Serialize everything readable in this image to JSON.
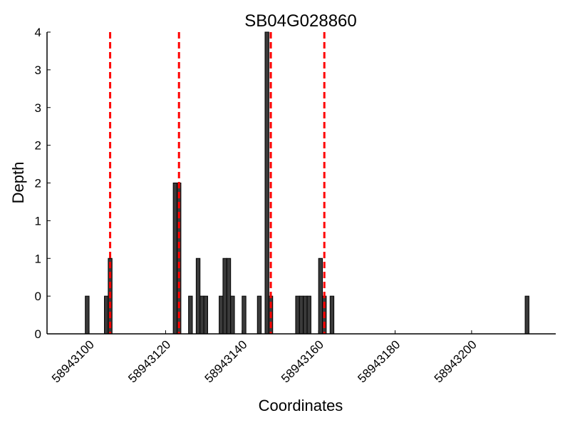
{
  "chart_data": {
    "type": "bar",
    "title": "SB04G028860",
    "xlabel": "Coordinates",
    "ylabel": "Depth",
    "xlim": [
      58943089,
      58943222
    ],
    "ylim": [
      0,
      4
    ],
    "x_ticks": [
      58943100,
      58943120,
      58943140,
      58943160,
      58943180,
      58943200
    ],
    "y_tick_labels": [
      "0",
      "0",
      "1",
      "1",
      "2",
      "2",
      "3",
      "3",
      "4"
    ],
    "bar_width": 1,
    "bar_color": "#3a3a3a",
    "bars": [
      {
        "x": 58943099,
        "value": 0.5
      },
      {
        "x": 58943104,
        "value": 0.5
      },
      {
        "x": 58943105,
        "value": 1.0
      },
      {
        "x": 58943122,
        "value": 2.0
      },
      {
        "x": 58943123,
        "value": 2.0
      },
      {
        "x": 58943126,
        "value": 0.5
      },
      {
        "x": 58943128,
        "value": 1.0
      },
      {
        "x": 58943129,
        "value": 0.5
      },
      {
        "x": 58943130,
        "value": 0.5
      },
      {
        "x": 58943134,
        "value": 0.5
      },
      {
        "x": 58943135,
        "value": 1.0
      },
      {
        "x": 58943136,
        "value": 1.0
      },
      {
        "x": 58943137,
        "value": 0.5
      },
      {
        "x": 58943140,
        "value": 0.5
      },
      {
        "x": 58943144,
        "value": 0.5
      },
      {
        "x": 58943146,
        "value": 4.0
      },
      {
        "x": 58943147,
        "value": 0.5
      },
      {
        "x": 58943154,
        "value": 0.5
      },
      {
        "x": 58943155,
        "value": 0.5
      },
      {
        "x": 58943156,
        "value": 0.5
      },
      {
        "x": 58943157,
        "value": 0.5
      },
      {
        "x": 58943160,
        "value": 1.0
      },
      {
        "x": 58943161,
        "value": 0.5
      },
      {
        "x": 58943163,
        "value": 0.5
      },
      {
        "x": 58943214,
        "value": 0.5
      }
    ],
    "markers": {
      "style": "dashed",
      "color": "#ff0000",
      "x": [
        58943105.5,
        58943123.5,
        58943147.5,
        58943161.5
      ]
    },
    "grid": false
  }
}
